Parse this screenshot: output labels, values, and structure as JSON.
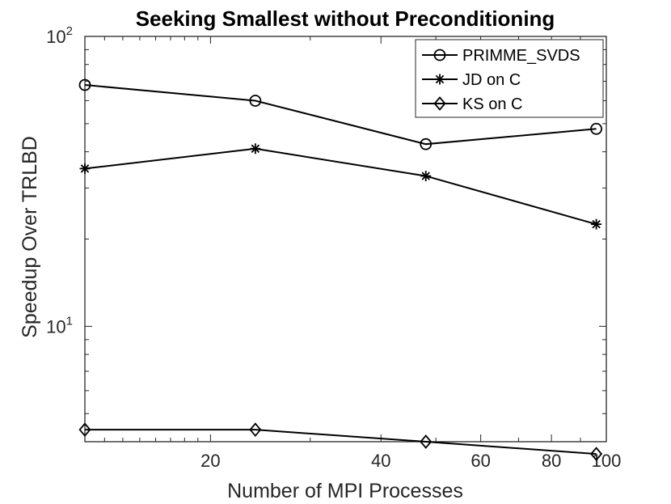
{
  "chart_data": {
    "type": "line",
    "title": "Seeking Smallest without Preconditioning",
    "xlabel": "Number of MPI Processes",
    "ylabel": "Speedup Over TRLBD",
    "xscale": "log",
    "yscale": "log",
    "xlim": [
      12,
      100
    ],
    "ylim": [
      4,
      100
    ],
    "x": [
      12,
      24,
      48,
      96
    ],
    "xticks": [
      20,
      40,
      60,
      80,
      100
    ],
    "xtick_labels": [
      "20",
      "40",
      "60",
      "80",
      "100"
    ],
    "yticks": [
      10,
      100
    ],
    "ytick_labels": [
      {
        "base": "10",
        "exp": "1"
      },
      {
        "base": "10",
        "exp": "2"
      }
    ],
    "legend_position": "top-right",
    "series": [
      {
        "name": "PRIMME_SVDS",
        "marker": "circle",
        "values": [
          68,
          60,
          42.5,
          48
        ]
      },
      {
        "name": "JD on C",
        "marker": "asterisk",
        "values": [
          35,
          41,
          33,
          22.5
        ]
      },
      {
        "name": "KS on C",
        "marker": "diamond",
        "values": [
          4.4,
          4.4,
          4.0,
          3.63
        ]
      }
    ]
  }
}
